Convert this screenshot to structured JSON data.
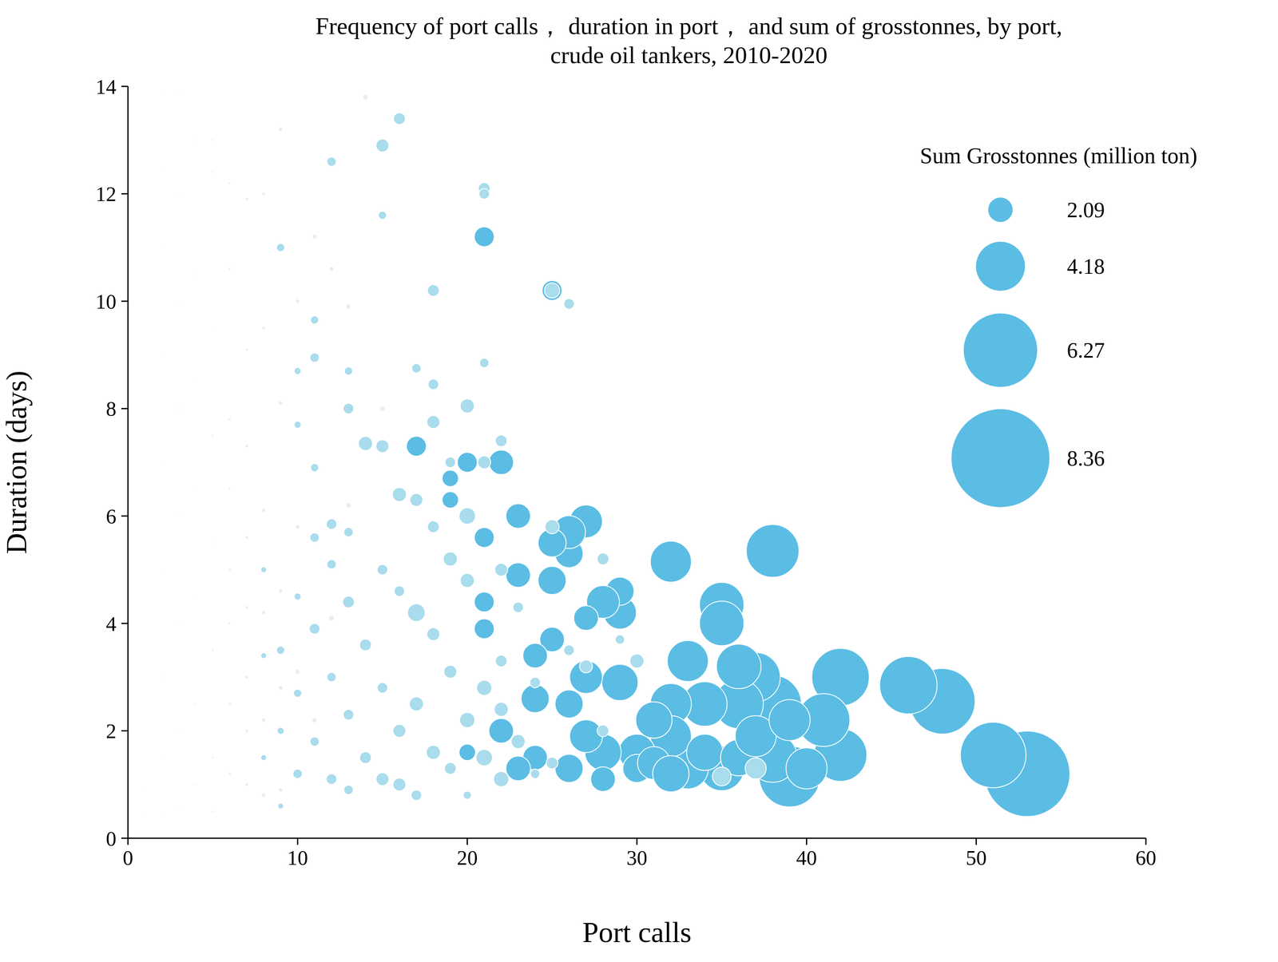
{
  "chart_data": {
    "type": "scatter",
    "title": "Frequency of port calls， duration in port， and sum of grosstonnes, by port,\ncrude oil tankers, 2010-2020",
    "x_label": "Port calls",
    "y_label": "Duration (days)",
    "xlim": [
      0,
      60
    ],
    "xticks": [
      0,
      10,
      20,
      30,
      40,
      50,
      60
    ],
    "ylim": [
      0,
      14
    ],
    "yticks": [
      0,
      2,
      4,
      6,
      8,
      10,
      12,
      14
    ],
    "grid": false,
    "size_legend": {
      "title": "Sum Grosstonnes (million ton)",
      "values": [
        2.09,
        4.18,
        6.27,
        8.36
      ],
      "color": "#5bbde4"
    },
    "series": [
      {
        "color": "#e5efef",
        "x": [
          1,
          1,
          2,
          2,
          2,
          2,
          2,
          2,
          2,
          2,
          2,
          3,
          3,
          3,
          3,
          3,
          3,
          3,
          3,
          4,
          4,
          4,
          4,
          4,
          4,
          4,
          5,
          5,
          5,
          5,
          5,
          5,
          5,
          5,
          6,
          6,
          6,
          6,
          6,
          6,
          6,
          6,
          7,
          7,
          7,
          7,
          7,
          7,
          7,
          7,
          8,
          8,
          8,
          8,
          8,
          8,
          9,
          9,
          9,
          9,
          9,
          10,
          10,
          10,
          11,
          11,
          12,
          12,
          13,
          13,
          14,
          15
        ],
        "y": [
          0.5,
          0.9,
          0.4,
          1.5,
          3,
          5,
          7,
          9,
          11,
          12.5,
          13.9,
          0.6,
          2,
          4,
          6,
          8,
          10,
          12,
          13.9,
          1,
          2.5,
          4.5,
          6.5,
          8.5,
          10.5,
          13,
          0.5,
          1.5,
          3.5,
          5.5,
          7.5,
          9.5,
          12.4,
          13,
          1.2,
          2.5,
          4,
          5,
          6.5,
          7.8,
          10.6,
          12.2,
          1,
          2,
          3,
          4.3,
          5.6,
          7.3,
          9.1,
          11.9,
          0.8,
          2.2,
          4.2,
          6.1,
          9.5,
          12,
          0.9,
          2.8,
          4.6,
          8.1,
          13.2,
          3.1,
          5.8,
          10,
          2.2,
          11.2,
          4.1,
          10.6,
          6.2,
          9.9,
          13.8,
          8
        ],
        "size": [
          0.05,
          0.05,
          0.05,
          0.06,
          0.05,
          0.06,
          0.05,
          0.05,
          0.05,
          0.06,
          0.05,
          0.08,
          0.1,
          0.08,
          0.09,
          0.08,
          0.08,
          0.08,
          0.07,
          0.12,
          0.12,
          0.1,
          0.1,
          0.11,
          0.1,
          0.1,
          0.15,
          0.14,
          0.15,
          0.13,
          0.14,
          0.12,
          0.15,
          0.13,
          0.18,
          0.2,
          0.17,
          0.19,
          0.16,
          0.18,
          0.17,
          0.16,
          0.22,
          0.2,
          0.24,
          0.21,
          0.2,
          0.22,
          0.19,
          0.2,
          0.3,
          0.28,
          0.26,
          0.27,
          0.25,
          0.24,
          0.3,
          0.32,
          0.28,
          0.3,
          0.3,
          0.35,
          0.33,
          0.3,
          0.38,
          0.35,
          0.4,
          0.36,
          0.4,
          0.38,
          0.42,
          0.4
        ]
      },
      {
        "color": "#5bbde4",
        "x": [
          53,
          51,
          48,
          46,
          42,
          42,
          41,
          39,
          38,
          38,
          38,
          37,
          36,
          36,
          35,
          35,
          35,
          34,
          33,
          33,
          32,
          32,
          32,
          31,
          30,
          29,
          29,
          29,
          28,
          28,
          28,
          27,
          27,
          27,
          26,
          26,
          25,
          25,
          25,
          25,
          24,
          24,
          23,
          23,
          23,
          22,
          21,
          21,
          21,
          21,
          20,
          19,
          19,
          17,
          22,
          26,
          30,
          31,
          34,
          40,
          20,
          24,
          26,
          27,
          32,
          36,
          37,
          39
        ],
        "y": [
          1.2,
          1.55,
          2.55,
          2.85,
          3.0,
          1.55,
          2.2,
          1.15,
          5.35,
          2.5,
          1.5,
          3.0,
          2.5,
          3.2,
          4.35,
          4.0,
          1.3,
          2.5,
          3.3,
          1.3,
          5.15,
          2.5,
          1.9,
          2.2,
          1.6,
          2.9,
          4.2,
          4.6,
          4.4,
          1.6,
          1.1,
          5.9,
          4.1,
          1.9,
          5.3,
          5.7,
          5.5,
          4.8,
          3.7,
          10.2,
          3.4,
          1.5,
          6.0,
          4.9,
          1.3,
          7.0,
          11.2,
          5.6,
          3.9,
          4.4,
          7.0,
          6.7,
          6.3,
          7.3,
          2.0,
          2.5,
          1.3,
          1.4,
          1.6,
          1.3,
          1.6,
          2.6,
          1.3,
          3.0,
          1.2,
          1.5,
          1.9,
          2.2
        ],
        "size": [
          7.3,
          5.6,
          5.6,
          4.9,
          4.9,
          4.5,
          4.5,
          5.2,
          4.5,
          4.9,
          4.2,
          4.2,
          4.2,
          3.8,
          3.8,
          3.8,
          3.8,
          3.8,
          3.5,
          3.5,
          3.5,
          3.5,
          3.5,
          3.1,
          3.1,
          3.1,
          2.8,
          2.4,
          2.8,
          3.1,
          2.1,
          2.8,
          2.1,
          2.8,
          2.4,
          2.8,
          2.4,
          2.4,
          2.1,
          1.7,
          2.1,
          2.1,
          2.1,
          2.1,
          2.1,
          2.1,
          1.7,
          1.7,
          1.7,
          1.7,
          1.7,
          1.4,
          1.4,
          1.7,
          2.1,
          2.4,
          2.4,
          2.8,
          3.1,
          3.5,
          1.4,
          2.4,
          2.4,
          2.8,
          3.1,
          3.1,
          3.5,
          3.5
        ]
      },
      {
        "color": "#a9dcec",
        "x": [
          16,
          15,
          12,
          21,
          21,
          15,
          9,
          25,
          26,
          18,
          11,
          11,
          13,
          10,
          17,
          21,
          18,
          20,
          18,
          13,
          10,
          14,
          15,
          22,
          21,
          19,
          11,
          16,
          17,
          20,
          12,
          13,
          11,
          18,
          25,
          28,
          19,
          22,
          12,
          15,
          17,
          20,
          23,
          16,
          13,
          10,
          9,
          11,
          14,
          18,
          22,
          26,
          29,
          30,
          19,
          12,
          15,
          17,
          21,
          24,
          28,
          10,
          13,
          16,
          20,
          22,
          9,
          11,
          14,
          18,
          21,
          23,
          8,
          10,
          12,
          15,
          17,
          19,
          22,
          25,
          9,
          13,
          16,
          20,
          35,
          37,
          24,
          27,
          8,
          8
        ],
        "y": [
          13.4,
          12.9,
          12.6,
          12.1,
          12.0,
          11.6,
          11.0,
          10.2,
          9.95,
          10.2,
          9.65,
          8.95,
          8.7,
          8.7,
          8.75,
          8.85,
          8.45,
          8.05,
          7.75,
          8.0,
          7.7,
          7.35,
          7.3,
          7.4,
          7.0,
          7.0,
          6.9,
          6.4,
          6.3,
          6.0,
          5.85,
          5.7,
          5.6,
          5.8,
          5.8,
          5.2,
          5.2,
          5.0,
          5.1,
          5.0,
          4.2,
          4.8,
          4.3,
          4.6,
          4.4,
          4.5,
          3.5,
          3.9,
          3.6,
          3.8,
          3.3,
          3.5,
          3.7,
          3.3,
          3.1,
          3.0,
          2.8,
          2.5,
          2.8,
          2.9,
          2.0,
          2.7,
          2.3,
          2.0,
          2.2,
          2.4,
          2.0,
          1.8,
          1.5,
          1.6,
          1.5,
          1.8,
          1.5,
          1.2,
          1.1,
          1.1,
          0.8,
          1.3,
          1.1,
          1.4,
          0.6,
          0.9,
          1.0,
          0.8,
          1.15,
          1.3,
          1.2,
          3.2,
          3.4,
          5.0
        ],
        "size": [
          1.0,
          1.1,
          0.8,
          1.0,
          0.9,
          0.7,
          0.7,
          1.3,
          0.9,
          1.0,
          0.7,
          0.8,
          0.7,
          0.6,
          0.8,
          0.8,
          0.9,
          1.2,
          1.1,
          0.9,
          0.6,
          1.2,
          1.1,
          1.0,
          1.1,
          0.9,
          0.7,
          1.2,
          1.1,
          1.4,
          0.9,
          0.8,
          0.8,
          1.0,
          1.2,
          1.0,
          1.2,
          1.1,
          0.8,
          0.9,
          1.5,
          1.2,
          0.9,
          0.9,
          1.0,
          0.6,
          0.7,
          0.9,
          1.0,
          1.1,
          1.0,
          0.9,
          0.8,
          1.2,
          1.1,
          0.8,
          0.9,
          1.2,
          1.3,
          0.9,
          1.0,
          0.7,
          0.9,
          1.1,
          1.3,
          1.2,
          0.6,
          0.8,
          1.0,
          1.2,
          1.4,
          1.2,
          0.5,
          0.8,
          0.9,
          1.1,
          0.9,
          1.0,
          1.3,
          1.0,
          0.5,
          0.8,
          1.1,
          0.7,
          1.6,
          1.8,
          0.8,
          1.1,
          0.5,
          0.5
        ]
      }
    ]
  }
}
